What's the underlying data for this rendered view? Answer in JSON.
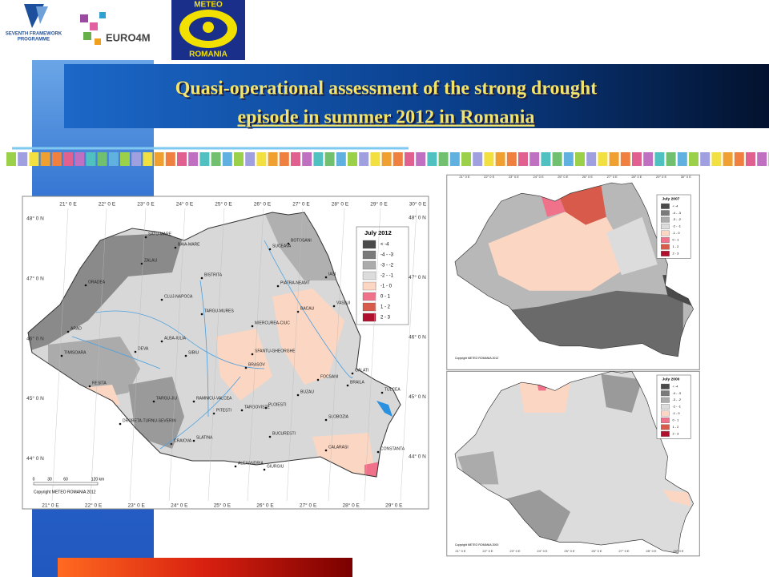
{
  "header": {
    "logos": {
      "fp7_line1": "SEVENTH FRAMEWORK",
      "fp7_line2": "PROGRAMME",
      "euro4m": "EURO4M",
      "meteo": "METEO",
      "romania": "ROMANIA"
    },
    "title_line1": "Quasi-operational assessment of  the strong drought",
    "title_line2": "episode in summer 2012 in Romania"
  },
  "main_map": {
    "legend": {
      "title": "July 2012",
      "items": [
        {
          "label": "< -4",
          "color": "#4a4a4a"
        },
        {
          "label": "-4 - -3",
          "color": "#7a7a7a"
        },
        {
          "label": "-3 - -2",
          "color": "#ababab"
        },
        {
          "label": "-2 - -1",
          "color": "#dcdcdc"
        },
        {
          "label": "-1 - 0",
          "color": "#fbd6c2"
        },
        {
          "label": "0 - 1",
          "color": "#f0728a"
        },
        {
          "label": "1 - 2",
          "color": "#d85a4a"
        },
        {
          "label": "2 - 3",
          "color": "#b0102e"
        }
      ]
    },
    "lon_top": [
      "21° 0 E",
      "22° 0 E",
      "23° 0 E",
      "24° 0 E",
      "25° 0 E",
      "26° 0 E",
      "27° 0 E",
      "28° 0 E",
      "29° 0 E",
      "30° 0 E"
    ],
    "lon_bottom": [
      "21° 0 E",
      "22° 0 E",
      "23° 0 E",
      "24° 0 E",
      "25° 0 E",
      "26° 0 E",
      "27° 0 E",
      "28° 0 E",
      "29° 0 E"
    ],
    "lat_left": [
      "48° 0 N",
      "47° 0 N",
      "46° 0 N",
      "45° 0 N",
      "44° 0 N"
    ],
    "lat_right": [
      "48° 0 N",
      "47° 0 N",
      "46° 0 N",
      "45° 0 N",
      "44° 0 N"
    ],
    "cities": [
      "SATU-MARE",
      "BAIA-MARE",
      "ZALAU",
      "BOTOSANI",
      "SUCEAVA",
      "ORADEA",
      "BISTRITA",
      "IASI",
      "PIATRA-NEAMT",
      "CLUJ-NAPOCA",
      "TARGU-MURES",
      "VASLUI",
      "BACAU",
      "MIERCUREA-CIUC",
      "ALBA-IULIA",
      "ARAD",
      "DEVA",
      "SIBIU",
      "SFANTU-GHEORGHE",
      "TIMISOARA",
      "BRASOV",
      "FOCSANI",
      "GALATI",
      "BRAILA",
      "TULCEA",
      "RESITA",
      "TARGU-JIU",
      "RAMNICU-VALCEA",
      "PLOIESTI",
      "BUZAU",
      "TARGOVISTE",
      "PITESTI",
      "DROBETA-TURNU-SEVERIN",
      "SLOBOZIA",
      "CRAIOVA",
      "SLATINA",
      "BUCURESTI",
      "CALARASI",
      "CONSTANTA",
      "ALEXANDRIA",
      "GIURGIU"
    ],
    "scale": [
      "0",
      "30",
      "60",
      "120 km"
    ],
    "copyright": "Copyright METEO ROMANIA 2012"
  },
  "map_2007": {
    "legend": {
      "title": "July 2007",
      "items": [
        {
          "label": "< -4",
          "color": "#4a4a4a"
        },
        {
          "label": "-4 - -3",
          "color": "#7a7a7a"
        },
        {
          "label": "-3 - -2",
          "color": "#ababab"
        },
        {
          "label": "-2 - -1",
          "color": "#dcdcdc"
        },
        {
          "label": "-1 - 0",
          "color": "#fbd6c2"
        },
        {
          "label": "0 - 1",
          "color": "#f0728a"
        },
        {
          "label": "1 - 2",
          "color": "#d85a4a"
        },
        {
          "label": "2 - 3",
          "color": "#b0102e"
        }
      ]
    },
    "lon_top": [
      "21° 0 E",
      "22° 0 E",
      "23° 0 E",
      "24° 0 E",
      "25° 0 E",
      "26° 0 E",
      "27° 0 E",
      "28° 0 E",
      "29° 0 E",
      "30° 0 E"
    ],
    "copyright": "Copyright METEO ROMANIA 2012"
  },
  "map_2000": {
    "legend": {
      "title": "July 2000",
      "items": [
        {
          "label": "< -4",
          "color": "#4a4a4a"
        },
        {
          "label": "-4 - -3",
          "color": "#7a7a7a"
        },
        {
          "label": "-3 - -2",
          "color": "#ababab"
        },
        {
          "label": "-2 - -1",
          "color": "#dcdcdc"
        },
        {
          "label": "-1 - 0",
          "color": "#fbd6c2"
        },
        {
          "label": "0 - 1",
          "color": "#f0728a"
        },
        {
          "label": "1 - 2",
          "color": "#d85a4a"
        },
        {
          "label": "2 - 3",
          "color": "#b0102e"
        }
      ]
    },
    "lon_bottom": [
      "21° 0 E",
      "22° 0 E",
      "23° 0 E",
      "24° 0 E",
      "25° 0 E",
      "26° 0 E",
      "27° 0 E",
      "28° 0 E",
      "29° 0 E"
    ],
    "copyright": "Copyright METEO ROMANIA 2000"
  }
}
